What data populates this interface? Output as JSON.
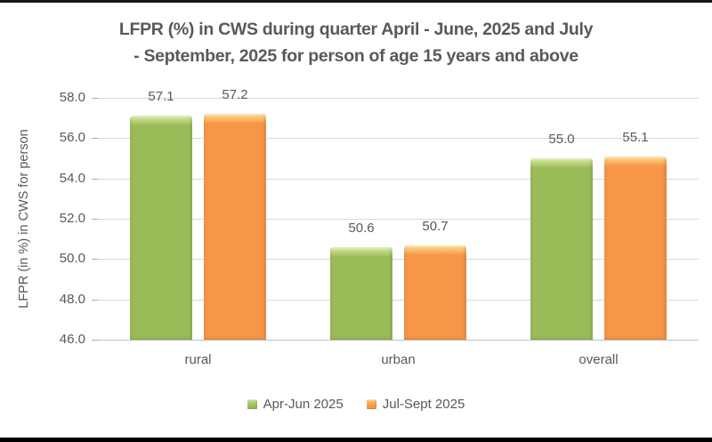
{
  "chart_data": {
    "type": "bar",
    "title_line1": "LFPR (%) in CWS during quarter April - June, 2025 and July",
    "title_line2": "- September, 2025 for person of age 15 years and above",
    "categories": [
      "rural",
      "urban",
      "overall"
    ],
    "series": [
      {
        "name": "Apr-Jun 2025",
        "values": [
          57.1,
          50.6,
          55.0
        ],
        "labels": [
          "57.1",
          "50.6",
          "55.0"
        ],
        "color": "#9BBB59",
        "color_light": "#CADF8F"
      },
      {
        "name": "Jul-Sept 2025",
        "values": [
          57.2,
          50.7,
          55.1
        ],
        "labels": [
          "57.2",
          "50.7",
          "55.1"
        ],
        "color": "#F79646",
        "color_light": "#FDCB7D"
      }
    ],
    "ylabel": "LFPR (in %) in CWS for person",
    "ylim": [
      46.0,
      58.0
    ],
    "ytick_labels": [
      "58.0",
      "56.0",
      "54.0",
      "52.0",
      "50.0",
      "48.0",
      "46.0"
    ],
    "grid": true,
    "legend_position": "bottom",
    "data_labels_shown": true
  },
  "style": {
    "text_color": "#595959",
    "gridline_color": "#D8D8D8",
    "top_strip_color": "#161616",
    "bottom_strip_color": "#000000"
  }
}
